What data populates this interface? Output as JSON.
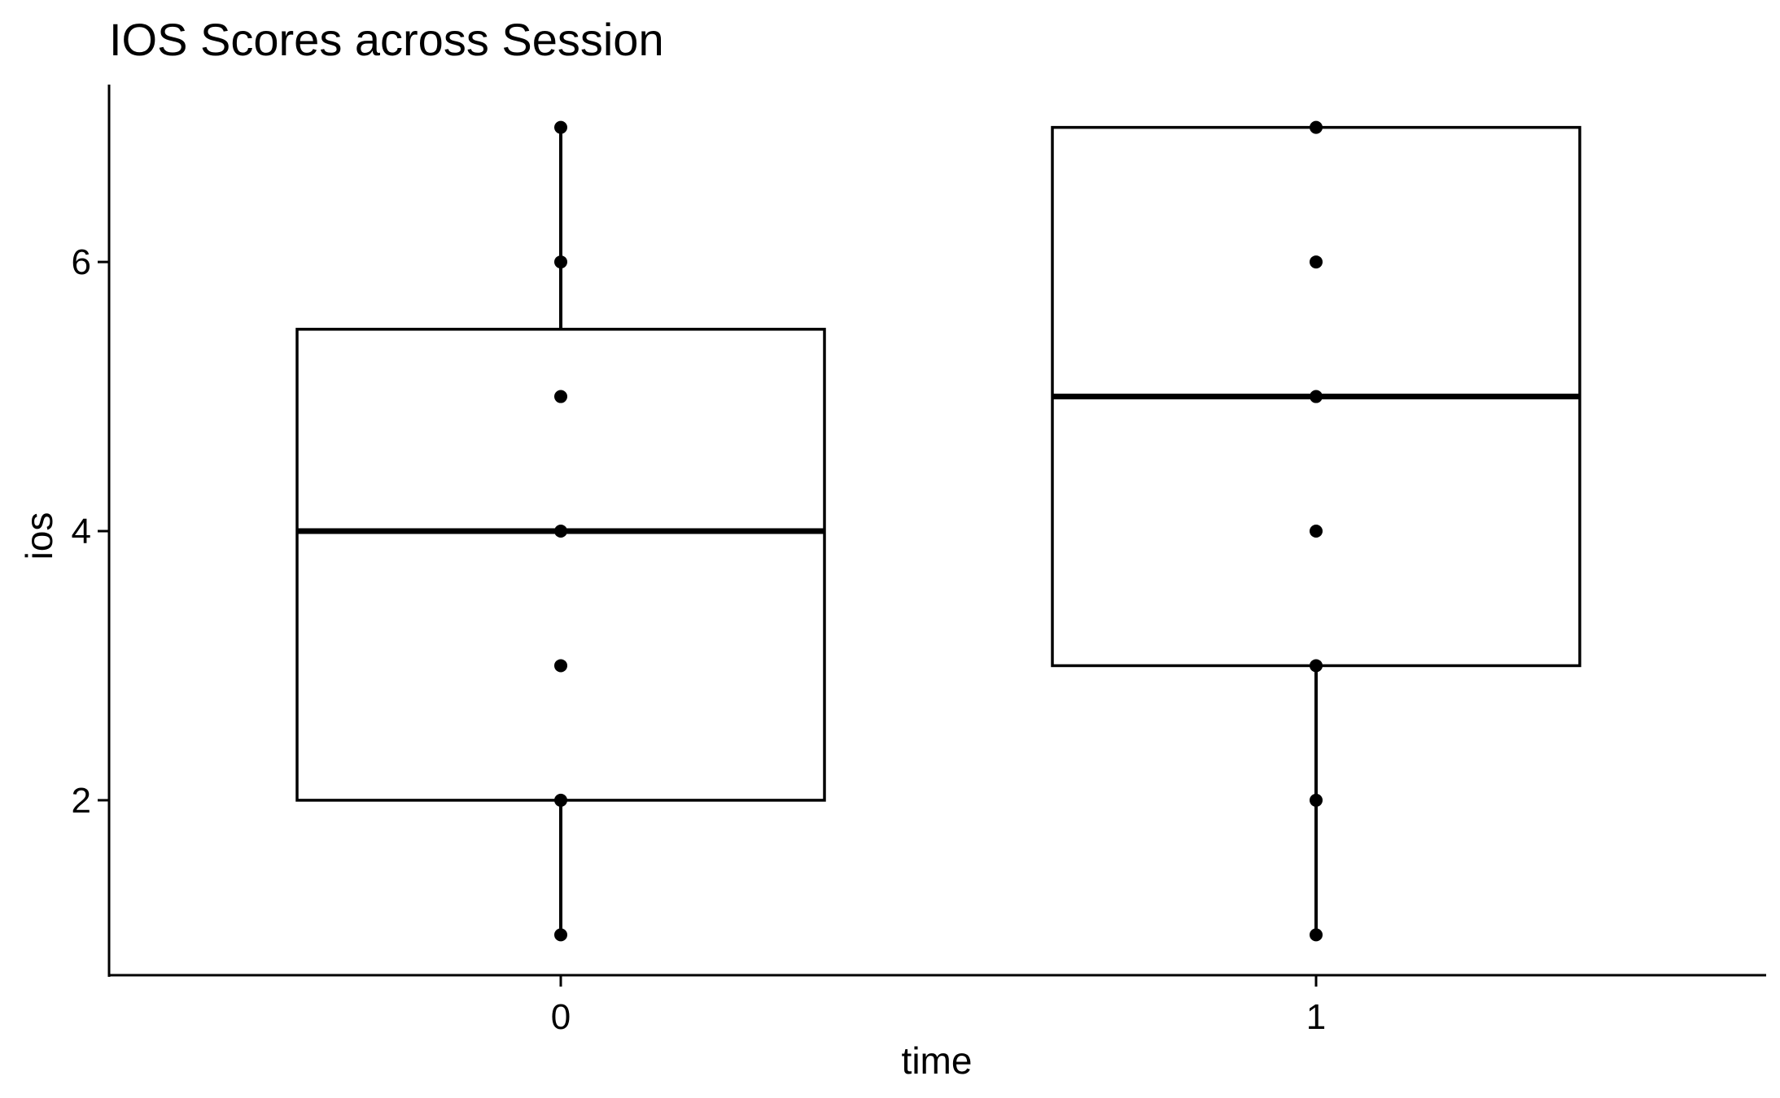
{
  "chart_data": {
    "type": "boxplot",
    "title": "IOS Scores across Session",
    "xlabel": "time",
    "ylabel": "ios",
    "categories": [
      "0",
      "1"
    ],
    "ylim": [
      0.7,
      7.3
    ],
    "yticks": [
      2,
      4,
      6
    ],
    "grid": false,
    "legend": "none",
    "boxes": [
      {
        "category": "0",
        "q1": 2,
        "median": 4,
        "q3": 5.5,
        "whisker_low": 1,
        "whisker_high": 7
      },
      {
        "category": "1",
        "q1": 3,
        "median": 5,
        "q3": 7,
        "whisker_low": 1,
        "whisker_high": 7
      }
    ],
    "points": [
      {
        "category": "0",
        "values": [
          1,
          2,
          3,
          4,
          5,
          6,
          7
        ]
      },
      {
        "category": "1",
        "values": [
          1,
          2,
          3,
          4,
          5,
          6,
          7
        ]
      }
    ],
    "colors": {
      "box_fill": "#ffffff",
      "stroke": "#000000",
      "point": "#000000"
    }
  }
}
